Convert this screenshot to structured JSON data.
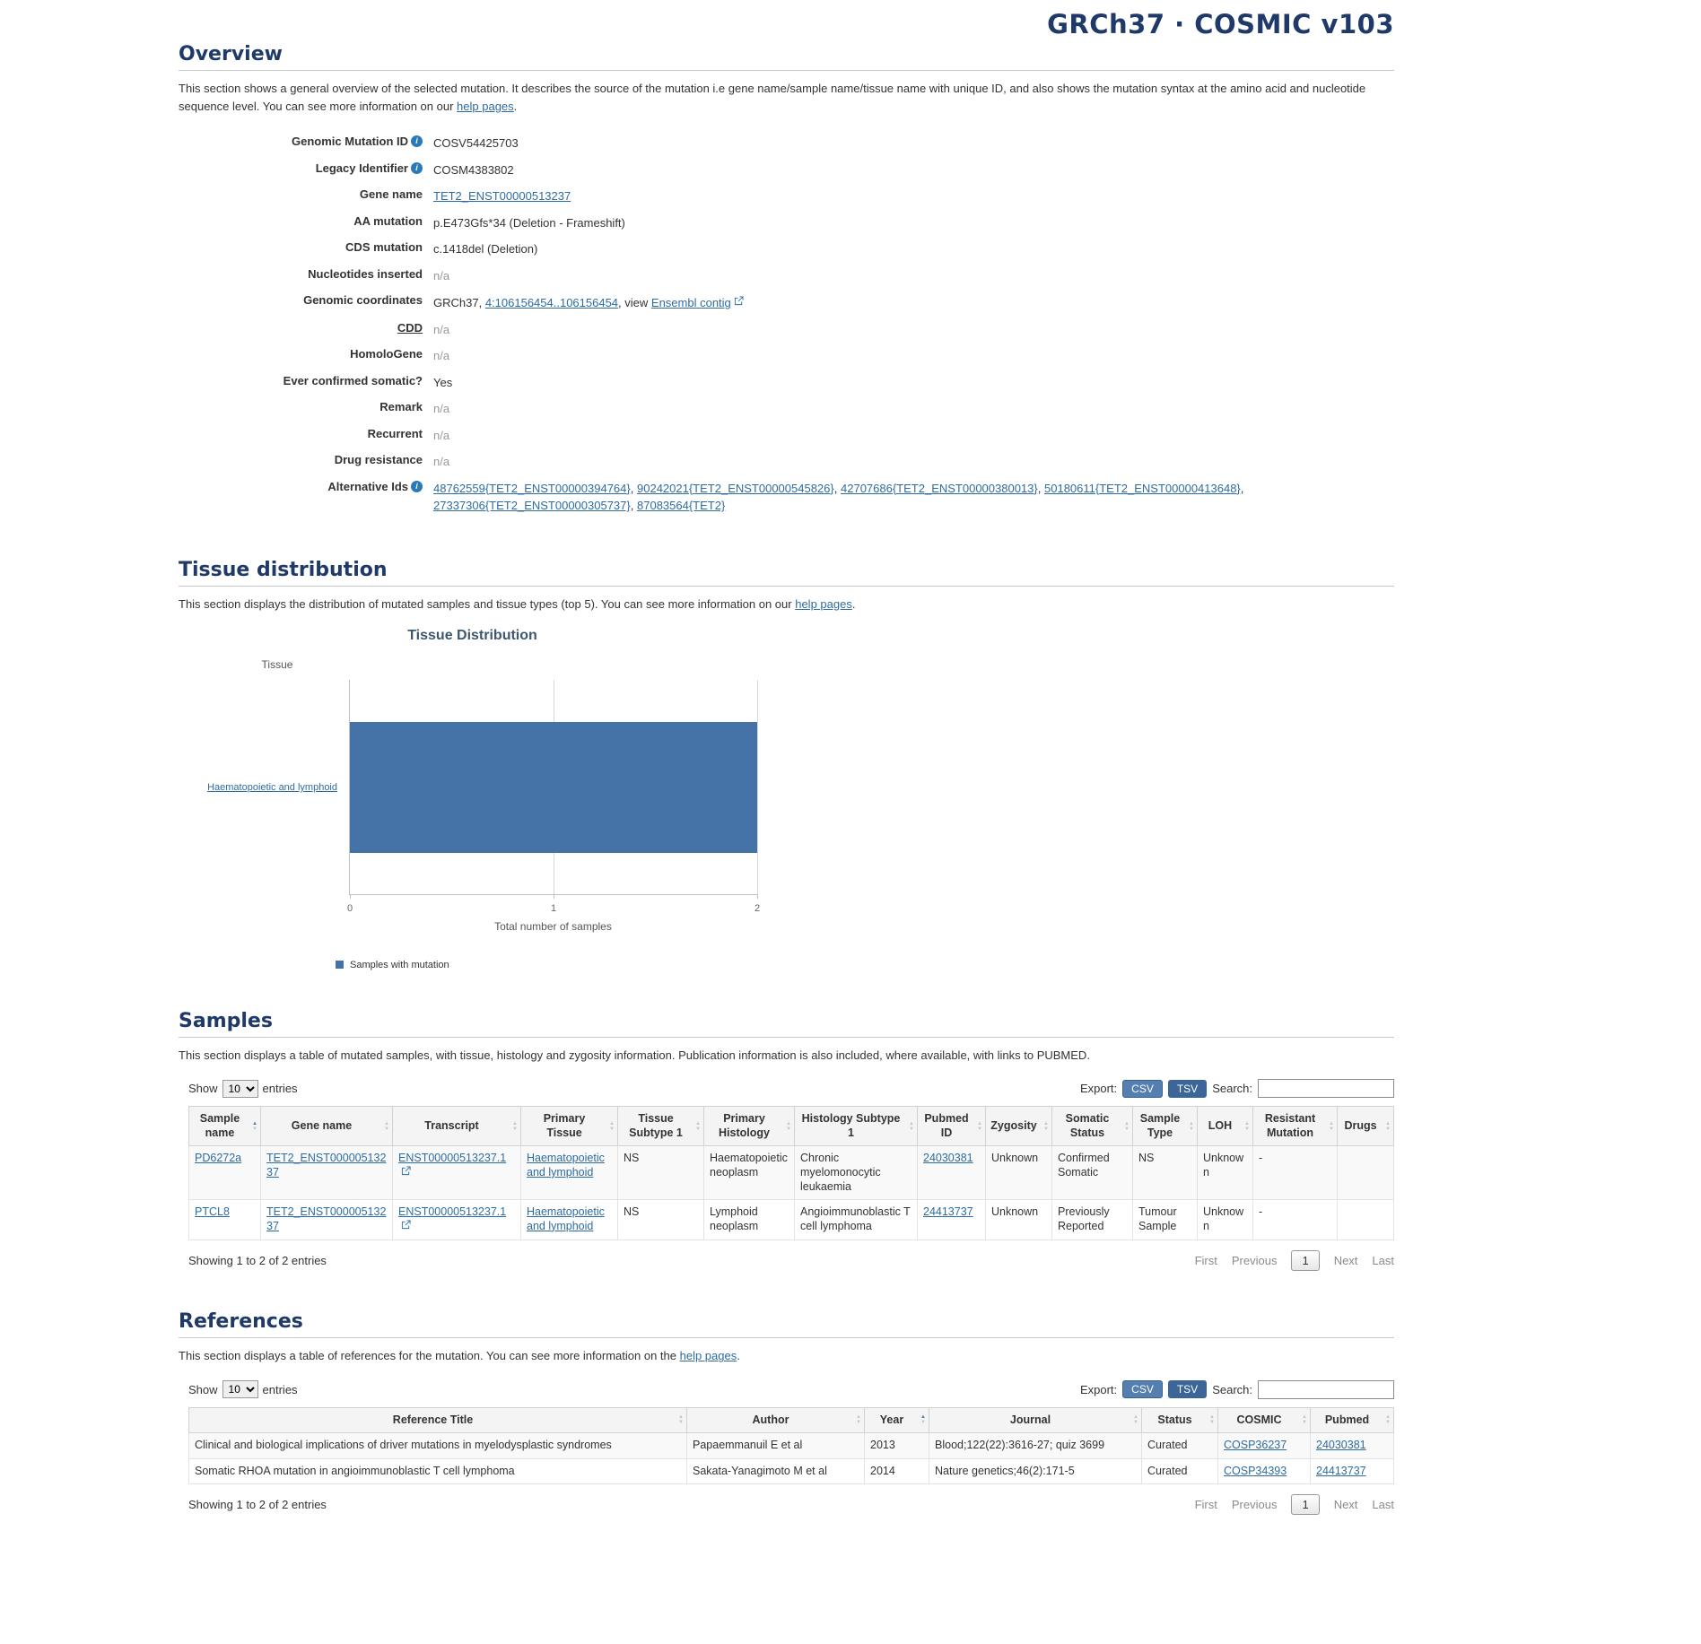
{
  "icons": {
    "info": "i",
    "sort_asc": "▲",
    "sort_desc": "▼"
  },
  "page": {
    "title": "GRCh37 · COSMIC v103"
  },
  "overview": {
    "heading": "Overview",
    "desc_before": "This section shows a general overview of the selected mutation. It describes the source of the mutation i.e gene name/sample name/tissue name with unique ID, and also shows the mutation syntax at the amino acid and nucleotide sequence level. You can see more information on our",
    "help_link": "help pages",
    "desc_after": ".",
    "comma": ",",
    "labels": {
      "genomic_mutation_id": "Genomic Mutation ID",
      "legacy_identifier": "Legacy Identifier",
      "gene_name": "Gene name",
      "aa_mutation": "AA mutation",
      "cds_mutation": "CDS mutation",
      "nucleotides_inserted": "Nucleotides inserted",
      "genomic_coordinates": "Genomic coordinates",
      "cdd": "CDD",
      "homologene": "HomoloGene",
      "ever_confirmed_somatic": "Ever confirmed somatic?",
      "remark": "Remark",
      "recurrent": "Recurrent",
      "drug_resistance": "Drug resistance",
      "alternative_ids": "Alternative Ids"
    },
    "values": {
      "genomic_mutation_id": "COSV54425703",
      "legacy_identifier": "COSM4383802",
      "gene_name": "TET2_ENST00000513237",
      "aa_mutation": "p.E473Gfs*34 (Deletion - Frameshift)",
      "cds_mutation": "c.1418del (Deletion)",
      "nucleotides_inserted": "n/a",
      "coords_prefix": "GRCh37,",
      "coords_link": "4:106156454..106156454",
      "coords_mid": ", view",
      "coords_contig_link": "Ensembl contig",
      "cdd": "n/a",
      "homologene": "n/a",
      "ever_confirmed_somatic": "Yes",
      "remark": "n/a",
      "recurrent": "n/a",
      "drug_resistance": "n/a"
    },
    "alt_ids": [
      "48762559{TET2_ENST00000394764}",
      "90242021{TET2_ENST00000545826}",
      "42707686{TET2_ENST00000380013}",
      "50180611{TET2_ENST00000413648}",
      "27337306{TET2_ENST00000305737}",
      "87083564{TET2}"
    ]
  },
  "tissue": {
    "heading": "Tissue distribution",
    "desc_before": "This section displays the distribution of mutated samples and tissue types (top 5). You can see more information on our",
    "help_link": "help pages",
    "desc_after": "."
  },
  "chart_data": {
    "type": "bar",
    "title": "Tissue Distribution",
    "orientation": "horizontal",
    "categories": [
      "Haematopoietic and lymphoid"
    ],
    "values": [
      2
    ],
    "series": [
      {
        "name": "Samples with mutation",
        "values": [
          2
        ]
      }
    ],
    "xlabel": "Total number of samples",
    "ylabel": "Tissue",
    "xlim": [
      0,
      2
    ],
    "xticks": [
      "0",
      "1",
      "2"
    ],
    "legend": [
      "Samples with mutation"
    ],
    "legend_position": "bottom",
    "grid": true,
    "bar_color": "#4572a7"
  },
  "table_ui": {
    "show": "Show",
    "page_size": "10",
    "entries": "entries",
    "export_label": "Export:",
    "csv": "CSV",
    "tsv": "TSV",
    "search_label": "Search:",
    "showing": "Showing 1 to 2 of 2 entries",
    "first": "First",
    "previous": "Previous",
    "page": "1",
    "next": "Next",
    "last": "Last"
  },
  "samples": {
    "heading": "Samples",
    "description": "This section displays a table of mutated samples, with tissue, histology and zygosity information. Publication information is also included, where available, with links to PUBMED.",
    "columns": [
      "Sample name",
      "Gene name",
      "Transcript",
      "Primary Tissue",
      "Tissue Subtype 1",
      "Primary Histology",
      "Histology Subtype 1",
      "Pubmed ID",
      "Zygosity",
      "Somatic Status",
      "Sample Type",
      "LOH",
      "Resistant Mutation",
      "Drugs"
    ],
    "rows": [
      [
        "PD6272a",
        "TET2_ENST00000513237",
        "ENST00000513237.1",
        "Haematopoietic and lymphoid",
        "NS",
        "Haematopoietic neoplasm",
        "Chronic myelomonocytic leukaemia",
        "24030381",
        "Unknown",
        "Confirmed Somatic",
        "NS",
        "Unknown",
        "-",
        ""
      ],
      [
        "PTCL8",
        "TET2_ENST00000513237",
        "ENST00000513237.1",
        "Haematopoietic and lymphoid",
        "NS",
        "Lymphoid neoplasm",
        "Angioimmunoblastic T cell lymphoma",
        "24413737",
        "Unknown",
        "Previously Reported",
        "Tumour Sample",
        "Unknown",
        "-",
        ""
      ]
    ]
  },
  "references": {
    "heading": "References",
    "desc_before": "This section displays a table of references for the mutation. You can see more information on the",
    "help_link": "help pages",
    "desc_after": ".",
    "columns": [
      "Reference Title",
      "Author",
      "Year",
      "Journal",
      "Status",
      "COSMIC",
      "Pubmed"
    ],
    "rows": [
      [
        "Clinical and biological implications of driver mutations in myelodysplastic syndromes",
        "Papaemmanuil E et al",
        "2013",
        "Blood;122(22):3616-27; quiz 3699",
        "Curated",
        "COSP36237",
        "24030381"
      ],
      [
        "Somatic RHOA mutation in angioimmunoblastic T cell lymphoma",
        "Sakata-Yanagimoto M et al",
        "2014",
        "Nature genetics;46(2):171-5",
        "Curated",
        "COSP34393",
        "24413737"
      ]
    ]
  }
}
